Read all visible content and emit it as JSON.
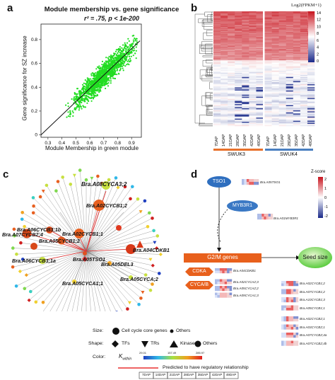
{
  "panels": {
    "a": {
      "letter": "a",
      "title": "Module membership vs. gene significance",
      "stat": "r² = .75, p < 1e-200",
      "chart_data": {
        "type": "scatter",
        "title": "Module membership vs. gene significance",
        "xlabel": "Module Membership in green module",
        "ylabel": "Gene significance for SZ increase",
        "xlim": [
          0.25,
          0.97
        ],
        "ylim": [
          -0.02,
          0.93
        ],
        "x_ticks": [
          "0.3",
          "0.4",
          "0.5",
          "0.6",
          "0.7",
          "0.8",
          "0.9"
        ],
        "y_ticks": [
          "0",
          "0.2",
          "0.4",
          "0.6",
          "0.8"
        ],
        "trend_line": {
          "x": [
            0.25,
            0.96
          ],
          "y": [
            0.0,
            0.79
          ]
        },
        "point_color": "#22dd22",
        "point_count": 1500
      }
    },
    "b": {
      "letter": "b",
      "scale_title": "Log2(FPKM+1)",
      "scale_ticks": [
        "14",
        "12",
        "10",
        "8",
        "6",
        "4",
        "2",
        "0"
      ],
      "columns": [
        "7DAP",
        "14DAP",
        "21DAP",
        "28DAP",
        "35DAP",
        "42DAP",
        "49DAP",
        "7DAP",
        "14DAP",
        "21DAP",
        "28DAP",
        "35DAP",
        "42DAP",
        "49DAP"
      ],
      "groups": [
        {
          "name": "SWUK3",
          "color": "#e8702a"
        },
        {
          "name": "SWUK4",
          "color": "#4a7fc0"
        }
      ]
    },
    "c": {
      "letter": "c",
      "gene_labels": [
        "Bra.A08CYCA3;2",
        "Bra.A02CYCB1;2",
        "Bra.A07CYCB2;4",
        "Bra.A06CYCB3;1b",
        "Bra.A02CYCB1;1",
        "Bra.A05CYCB1;2",
        "Bra.A04CDKB1",
        "Bra.A06CYCB3;1a",
        "Bra.A05TSO1",
        "Bra.A05DEL3",
        "Bra.A05CYCA1;1",
        "Bra.A05CYCA;2"
      ],
      "legend": {
        "size_label": "Size:",
        "size_items": [
          "Cell cycle core genes",
          "Others"
        ],
        "shape_label": "Shape:",
        "shape_items": [
          "TFs",
          "TRs",
          "Kinases",
          "Others"
        ],
        "color_label": "Color:",
        "kwithin_label": "K",
        "kwithin_sub": "within",
        "kwithin_ticks": [
          "29.01",
          "157.49",
          "285.97"
        ],
        "line_label": "Predicted to have regulatory relationship",
        "line_color": "#e83030"
      }
    },
    "d": {
      "letter": "d",
      "zscore_title": "Z-score",
      "zscore_ticks": [
        "2",
        "1",
        "0",
        "-1",
        "-2"
      ],
      "nodes": {
        "tso1": "TSO1",
        "myb3r1": "MYB3R1",
        "g2m": "G2/M genes",
        "seed": "Seed size",
        "cdka": "CDKA",
        "cyca": "CYCA/B"
      },
      "node_genes": {
        "tso1": "Bra.A05TSO1",
        "myb3r1": "Bra.A01MYB3R1"
      },
      "left_genes": [
        "Bra.A04CDKB1",
        "Bra.A02CYCA2;3",
        "Bra.A05CYCA2;2",
        "Bra.A09CYCA1;3"
      ],
      "right_genes": [
        "Bra.A02CYCB1;2",
        "Bra.A07CYCB1;2",
        "Bra.A10CYCB1;3",
        "Bra.A05CYCB1;1",
        "Bra.A02CYCB2;1",
        "Bra.A03CYCB2;1",
        "Bra.A07CYCB2;4a",
        "Bra.A07CYCB2;4b"
      ],
      "timepoints": [
        "7DAP",
        "14DAP",
        "21DAP",
        "28DAP",
        "35DAP",
        "42DAP",
        "49DAP"
      ]
    }
  }
}
